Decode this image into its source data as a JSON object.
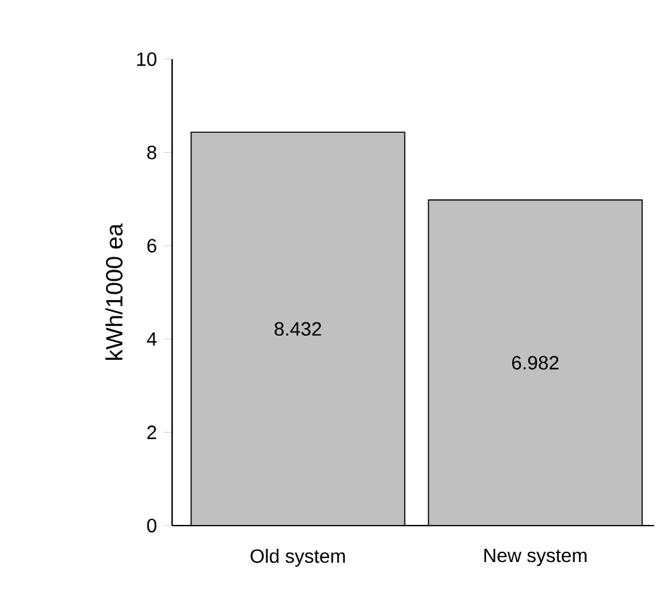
{
  "chart_data": {
    "type": "bar",
    "ylabel": "kWh/1000 ea",
    "categories": [
      "Old system",
      "New system"
    ],
    "values": [
      8.432,
      6.982
    ],
    "value_labels": [
      "8.432",
      "6.982"
    ],
    "color": "#c0c0c0",
    "ylim": [
      0,
      10
    ],
    "yticks": [
      0,
      2,
      4,
      6,
      8,
      10
    ],
    "grid": false
  }
}
